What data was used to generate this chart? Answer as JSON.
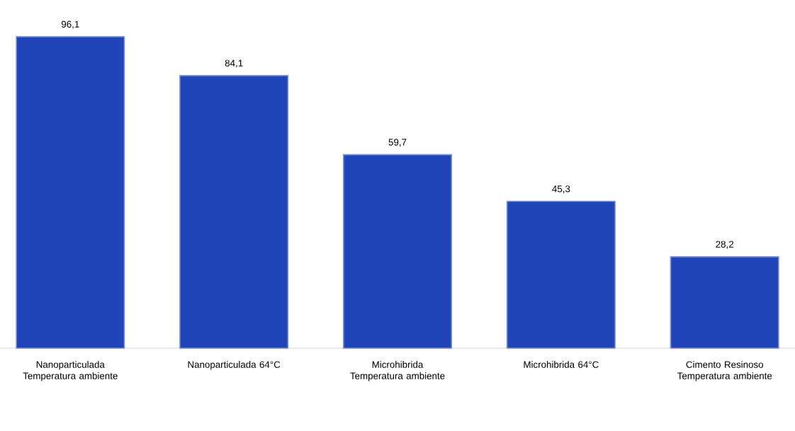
{
  "chart_data": {
    "type": "bar",
    "categories": [
      "Nanoparticulada Temperatura ambiente",
      "Nanoparticulada 64°C",
      "Microhibrida Temperatura ambiente",
      "Microhibrida 64°C",
      "Cimento Resinoso Temperatura ambiente"
    ],
    "values": [
      96.1,
      84.1,
      59.7,
      45.3,
      28.2
    ],
    "value_labels": [
      "96,1",
      "84,1",
      "59,7",
      "45,3",
      "28,2"
    ],
    "color": "#1f45b8"
  }
}
